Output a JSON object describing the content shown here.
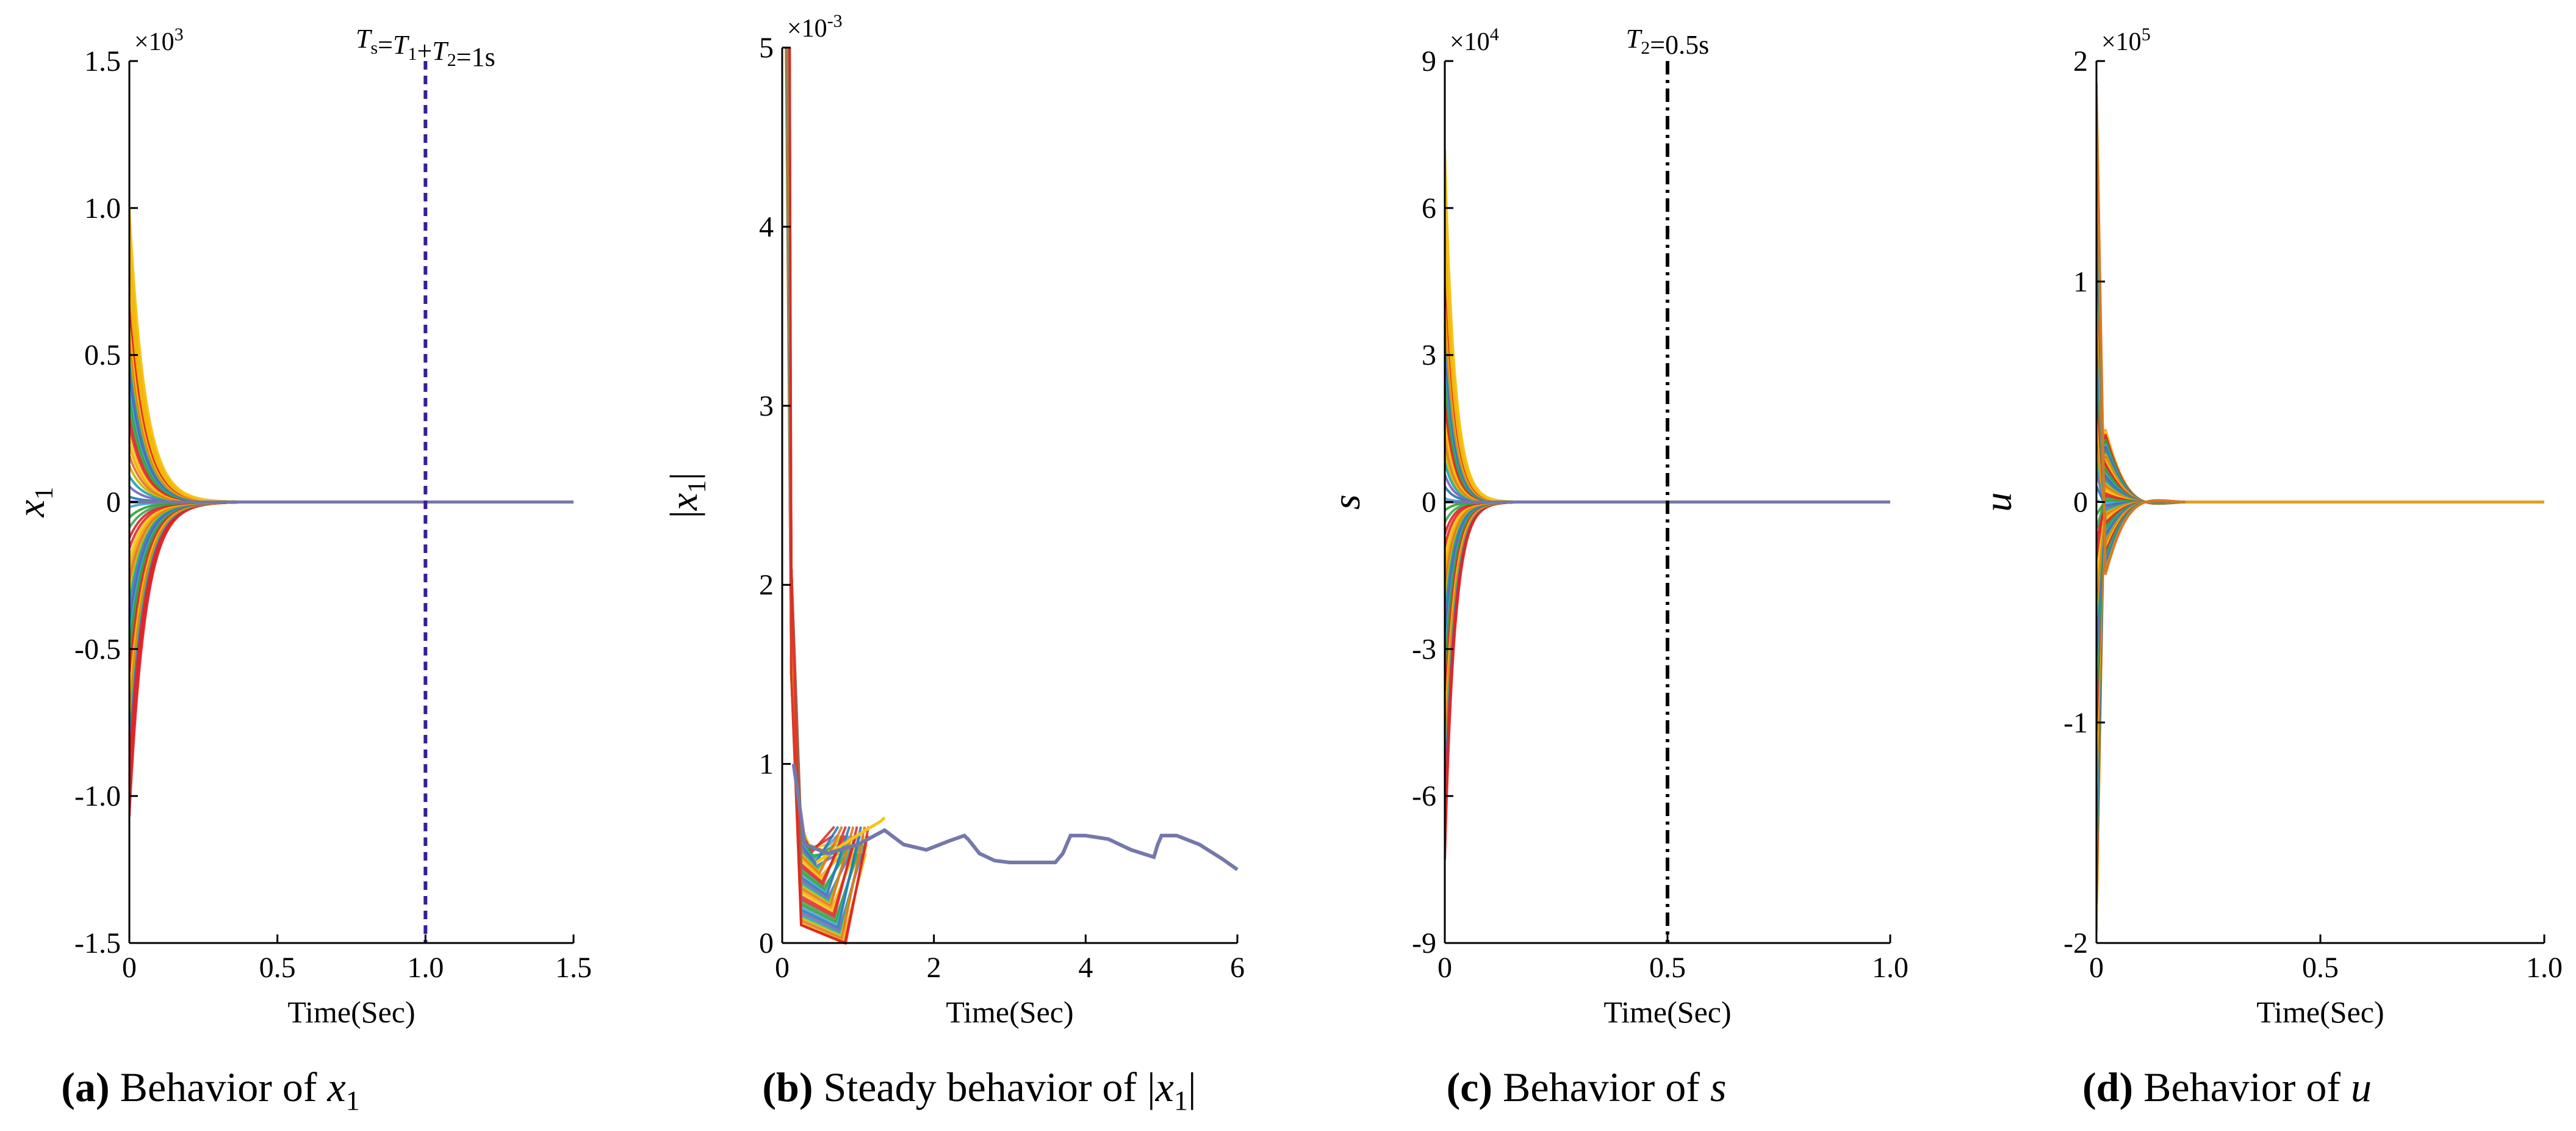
{
  "colors": {
    "axis": "#000000",
    "palette": [
      "#f2a900",
      "#f5c518",
      "#e8262a",
      "#d62728",
      "#3aa655",
      "#2ca02c",
      "#4a9fd8",
      "#1f77b4",
      "#7b5fb5",
      "#17a5a5",
      "#c8b400",
      "#e07020"
    ],
    "converged": "#7478aa",
    "x1_vline": "#3a1e96",
    "s_vline": "#000000",
    "u_tail": "#e0a020"
  },
  "chart_data": [
    {
      "id": "a",
      "type": "line",
      "caption_letter": "(a)",
      "caption_text": "Behavior of ",
      "caption_var": "x",
      "caption_sub": "1",
      "ylabel_var": "x",
      "ylabel_sub": "1",
      "xlabel": "Time(Sec)",
      "xlim": [
        0,
        1.5
      ],
      "ylim": [
        -1.5,
        1.5
      ],
      "y_exponent": "×10",
      "y_exponent_power": "3",
      "xticks": [
        0,
        0.5,
        1.0,
        1.5
      ],
      "xtick_labels": [
        "0",
        "0.5",
        "1.0",
        "1.5"
      ],
      "yticks": [
        -1.5,
        -1.0,
        -0.5,
        0,
        0.5,
        1.0,
        1.5
      ],
      "ytick_labels": [
        "-1.5",
        "-1.0",
        "-0.5",
        "0",
        "0.5",
        "1.0",
        "1.5"
      ],
      "vline": {
        "x": 1.0,
        "style": "dashed",
        "label_parts": [
          "T",
          "s",
          "=T",
          "1",
          "+T",
          "2",
          "=1s"
        ]
      },
      "family": {
        "kind": "decay",
        "y0_max": 1.0,
        "y0_min": -1.07,
        "decay_rate": 28,
        "t_end": 1.5,
        "converged_value": 0
      }
    },
    {
      "id": "b",
      "type": "line",
      "caption_letter": "(b)",
      "caption_text": "Steady behavior of ",
      "caption_var": "x",
      "caption_sub": "1",
      "ylabel_var": "x",
      "ylabel_sub": "1",
      "ylabel_abs": true,
      "xlabel": "Time(Sec)",
      "xlim": [
        0,
        6
      ],
      "ylim": [
        0,
        5
      ],
      "y_exponent": "×10",
      "y_exponent_power": "-3",
      "xticks": [
        0,
        2,
        4,
        6
      ],
      "xtick_labels": [
        "0",
        "2",
        "4",
        "6"
      ],
      "yticks": [
        0,
        1,
        2,
        3,
        4,
        5
      ],
      "ytick_labels": [
        "0",
        "1",
        "2",
        "3",
        "4",
        "5"
      ],
      "steady_curve": {
        "x": [
          0.15,
          0.3,
          0.6,
          1.0,
          1.35,
          1.6,
          1.9,
          2.2,
          2.4,
          2.45,
          2.6,
          2.8,
          3.0,
          3.3,
          3.6,
          3.7,
          3.8,
          4.0,
          4.3,
          4.6,
          4.9,
          4.95,
          5.0,
          5.2,
          5.5,
          5.8,
          6.0
        ],
        "y": [
          1.0,
          0.55,
          0.5,
          0.55,
          0.63,
          0.55,
          0.52,
          0.57,
          0.6,
          0.58,
          0.5,
          0.46,
          0.45,
          0.45,
          0.45,
          0.5,
          0.6,
          0.6,
          0.58,
          0.52,
          0.48,
          0.55,
          0.6,
          0.6,
          0.55,
          0.47,
          0.41
        ]
      },
      "yellow_curve": {
        "x": [
          0.45,
          0.8,
          1.1,
          1.3,
          1.35
        ],
        "y": [
          0.45,
          0.55,
          0.63,
          0.68,
          0.7
        ]
      }
    },
    {
      "id": "c",
      "type": "line",
      "caption_letter": "(c)",
      "caption_text": "Behavior of ",
      "caption_var": "s",
      "caption_sub": "",
      "ylabel_var": "s",
      "ylabel_sub": "",
      "xlabel": "Time(Sec)",
      "xlim": [
        0,
        1.0
      ],
      "ylim": [
        -9,
        9
      ],
      "y_exponent": "×10",
      "y_exponent_power": "4",
      "xticks": [
        0,
        0.5,
        1.0
      ],
      "xtick_labels": [
        "0",
        "0.5",
        "1.0"
      ],
      "yticks": [
        -9,
        -6,
        -3,
        0,
        3,
        6,
        9
      ],
      "ytick_labels": [
        "-9",
        "-6",
        "-3",
        "0",
        "3",
        "6",
        "9"
      ],
      "vline": {
        "x": 0.5,
        "style": "dashdot",
        "label_parts": [
          "T",
          "2",
          "=0.5s"
        ]
      },
      "family": {
        "kind": "decay",
        "y0_max": 7.2,
        "y0_min": -7.3,
        "decay_rate": 45,
        "t_end": 1.0,
        "converged_value": 0
      }
    },
    {
      "id": "d",
      "type": "line",
      "caption_letter": "(d)",
      "caption_text": "Behavior of ",
      "caption_var": "u",
      "caption_sub": "",
      "ylabel_var": "u",
      "ylabel_sub": "",
      "xlabel": "Time(Sec)",
      "xlim": [
        0,
        1.0
      ],
      "ylim": [
        -2,
        2
      ],
      "y_exponent": "×10",
      "y_exponent_power": "5",
      "xticks": [
        0,
        0.5,
        1.0
      ],
      "xtick_labels": [
        "0",
        "0.5",
        "1.0"
      ],
      "yticks": [
        -2,
        -1,
        0,
        1,
        2
      ],
      "ytick_labels": [
        "-2",
        "-1",
        "0",
        "1",
        "2"
      ],
      "family": {
        "kind": "oscillate",
        "y0_max": 1.9,
        "y0_min": -1.95,
        "bump": 0.33,
        "bump_t": 0.05,
        "settle_t": 0.2,
        "t_end": 1.0,
        "converged_value": 0
      }
    }
  ]
}
